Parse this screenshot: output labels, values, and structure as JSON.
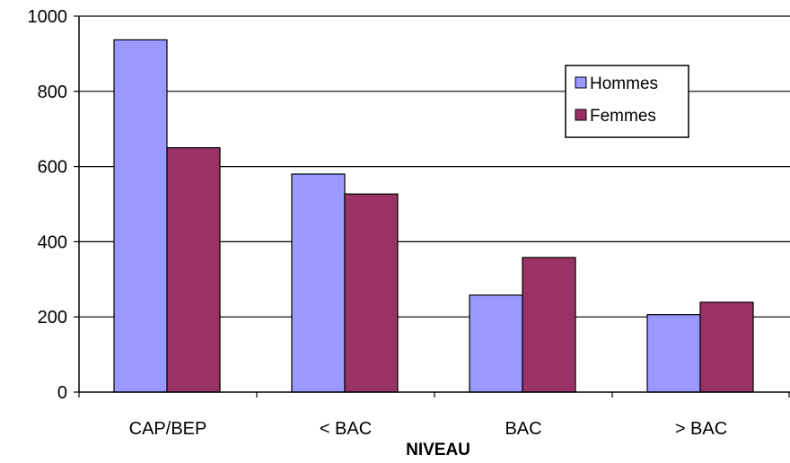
{
  "chart_data": {
    "type": "bar",
    "title": "",
    "xlabel": "NIVEAU",
    "ylabel": "",
    "categories": [
      "CAP/BEP",
      "< BAC",
      "BAC",
      "> BAC"
    ],
    "series": [
      {
        "name": "Hommes",
        "values": [
          937,
          580,
          258,
          206
        ],
        "color": "#9999ff"
      },
      {
        "name": "Femmes",
        "values": [
          650,
          527,
          358,
          239
        ],
        "color": "#993366"
      }
    ],
    "ylim": [
      0,
      1000
    ],
    "yticks": [
      "0",
      "200",
      "400",
      "600",
      "800",
      "1000"
    ],
    "grid": true,
    "legend_position": "top-right"
  }
}
